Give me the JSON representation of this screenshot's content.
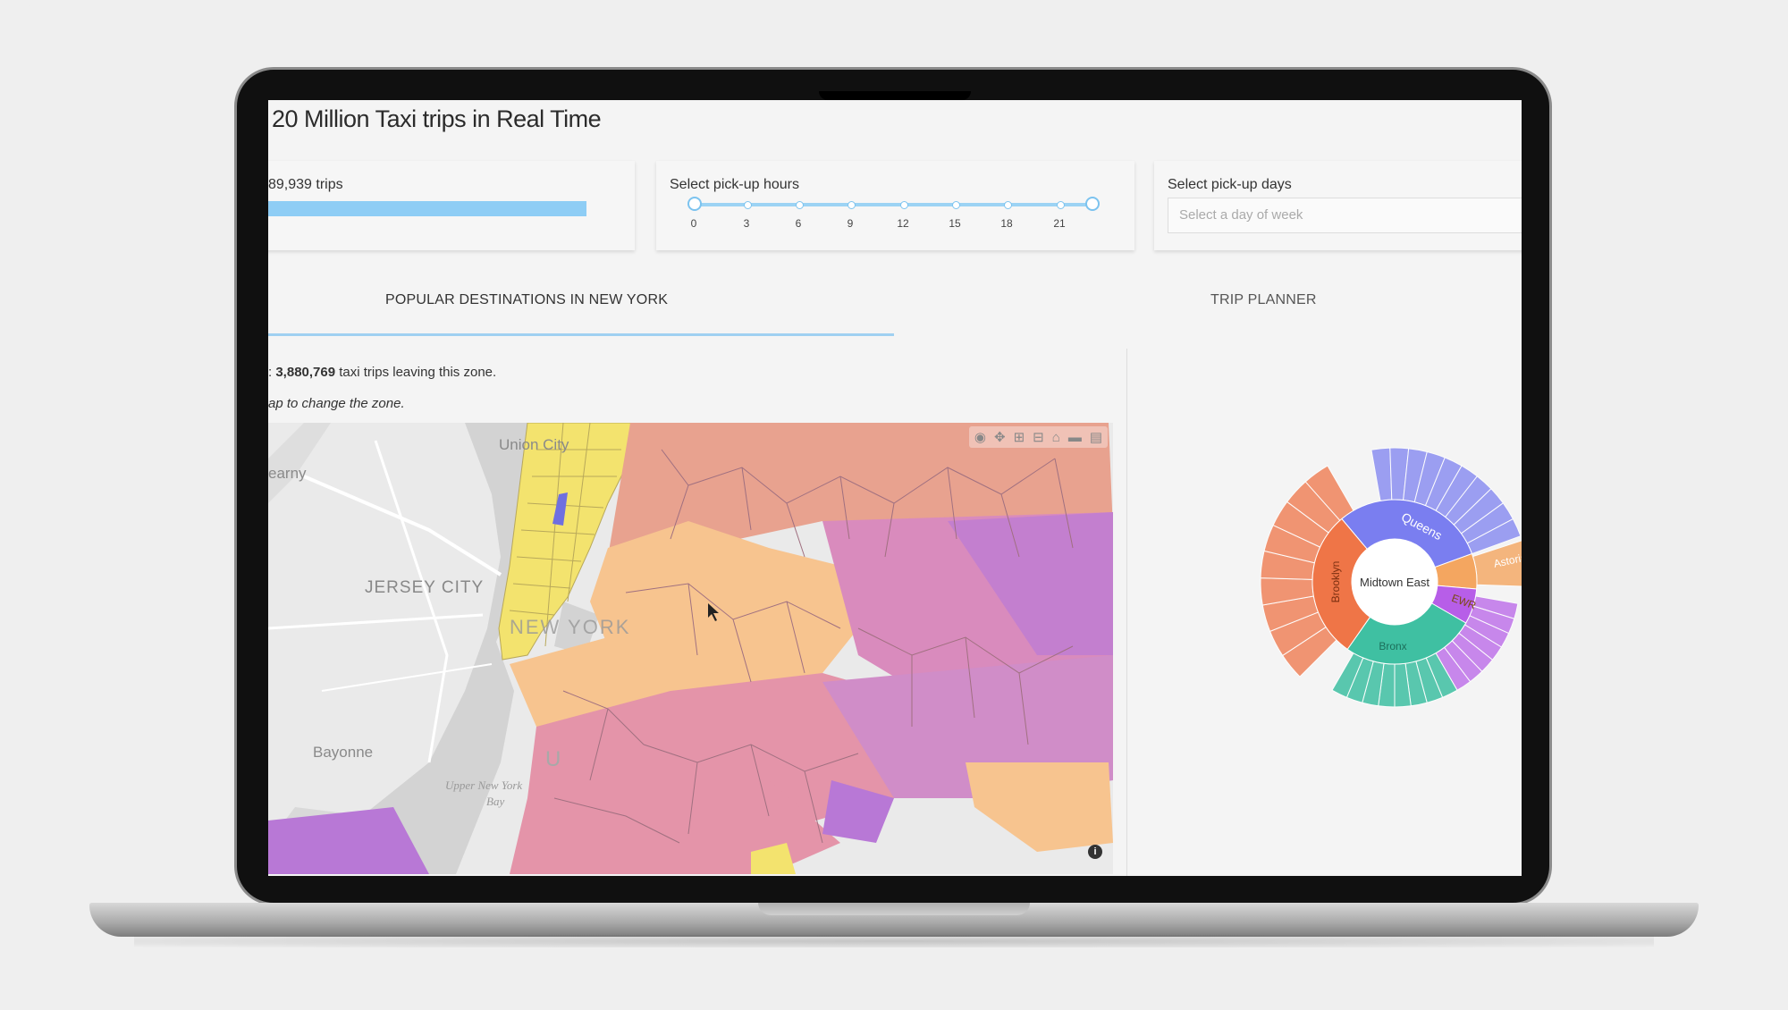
{
  "app": {
    "title": "20 Million Taxi trips in Real Time"
  },
  "trips": {
    "label": "89,939 trips",
    "bar_fraction": 0.9
  },
  "hours": {
    "label": "Select pick-up hours",
    "ticks": [
      "0",
      "3",
      "6",
      "9",
      "12",
      "15",
      "18",
      "21"
    ],
    "range": [
      0,
      23
    ],
    "accent": "#7cc3ef"
  },
  "days": {
    "label": "Select pick-up days",
    "placeholder": "Select a day of week"
  },
  "tabs": {
    "popular": "POPULAR DESTINATIONS IN NEW YORK",
    "planner": "TRIP PLANNER"
  },
  "zone": {
    "prefix": ": ",
    "count": "3,880,769",
    "suffix": " taxi trips leaving this zone.",
    "hint": "ap to change the zone."
  },
  "map": {
    "labels": [
      "Union City",
      "earny",
      "JERSEY CITY",
      "NEW YORK",
      "Bayonne",
      "Upper New York",
      "Bay",
      "U"
    ],
    "toolbar_icons": [
      "camera-icon",
      "pan-icon",
      "zoom-in-icon",
      "zoom-out-icon",
      "home-icon",
      "label-icon",
      "chart-icon"
    ],
    "info": "i"
  },
  "sunburst": {
    "center": "Midtown East",
    "segments": [
      "Queens",
      "Brooklyn",
      "Bronx",
      "EWR",
      "Astoria"
    ],
    "colors": {
      "queens": "#7a7ef0",
      "brooklyn": "#ef7547",
      "bronx": "#3fc0a2",
      "ewr": "#f4a660",
      "manhattan": "#b75ee8"
    }
  }
}
